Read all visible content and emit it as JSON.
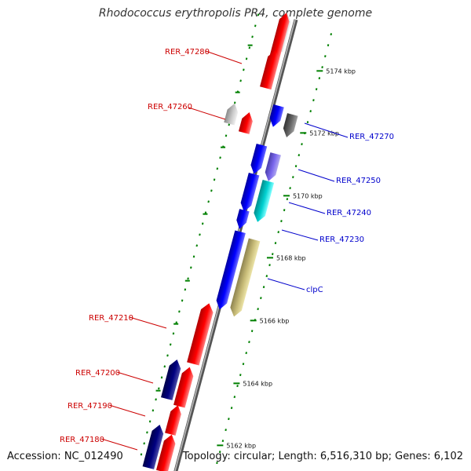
{
  "title": "Rhodococcus erythropolis PR4, complete genome",
  "footer": {
    "accession": "Accession: NC_012490",
    "summary": "Topology: circular; Length: 6,516,310 bp; Genes: 6,102"
  },
  "colors": {
    "forward_label": "#cc0000",
    "reverse_label": "#0000cc",
    "tick": "#008000",
    "backbone": "#777777"
  },
  "scale": {
    "unit": "kbp",
    "ticks": [
      "5162 kbp",
      "5164 kbp",
      "5166 kbp",
      "5168 kbp",
      "5170 kbp",
      "5172 kbp",
      "5174 kbp"
    ]
  },
  "genes": [
    {
      "label": "RER_47280",
      "strand": "forward"
    },
    {
      "label": "RER_47260",
      "strand": "forward"
    },
    {
      "label": "RER_47270",
      "strand": "reverse"
    },
    {
      "label": "RER_47250",
      "strand": "reverse"
    },
    {
      "label": "RER_47240",
      "strand": "reverse"
    },
    {
      "label": "RER_47230",
      "strand": "reverse"
    },
    {
      "label": "clpC",
      "strand": "reverse"
    },
    {
      "label": "RER_47210",
      "strand": "forward"
    },
    {
      "label": "RER_47200",
      "strand": "forward"
    },
    {
      "label": "RER_47190",
      "strand": "forward"
    },
    {
      "label": "RER_47180",
      "strand": "forward"
    }
  ]
}
